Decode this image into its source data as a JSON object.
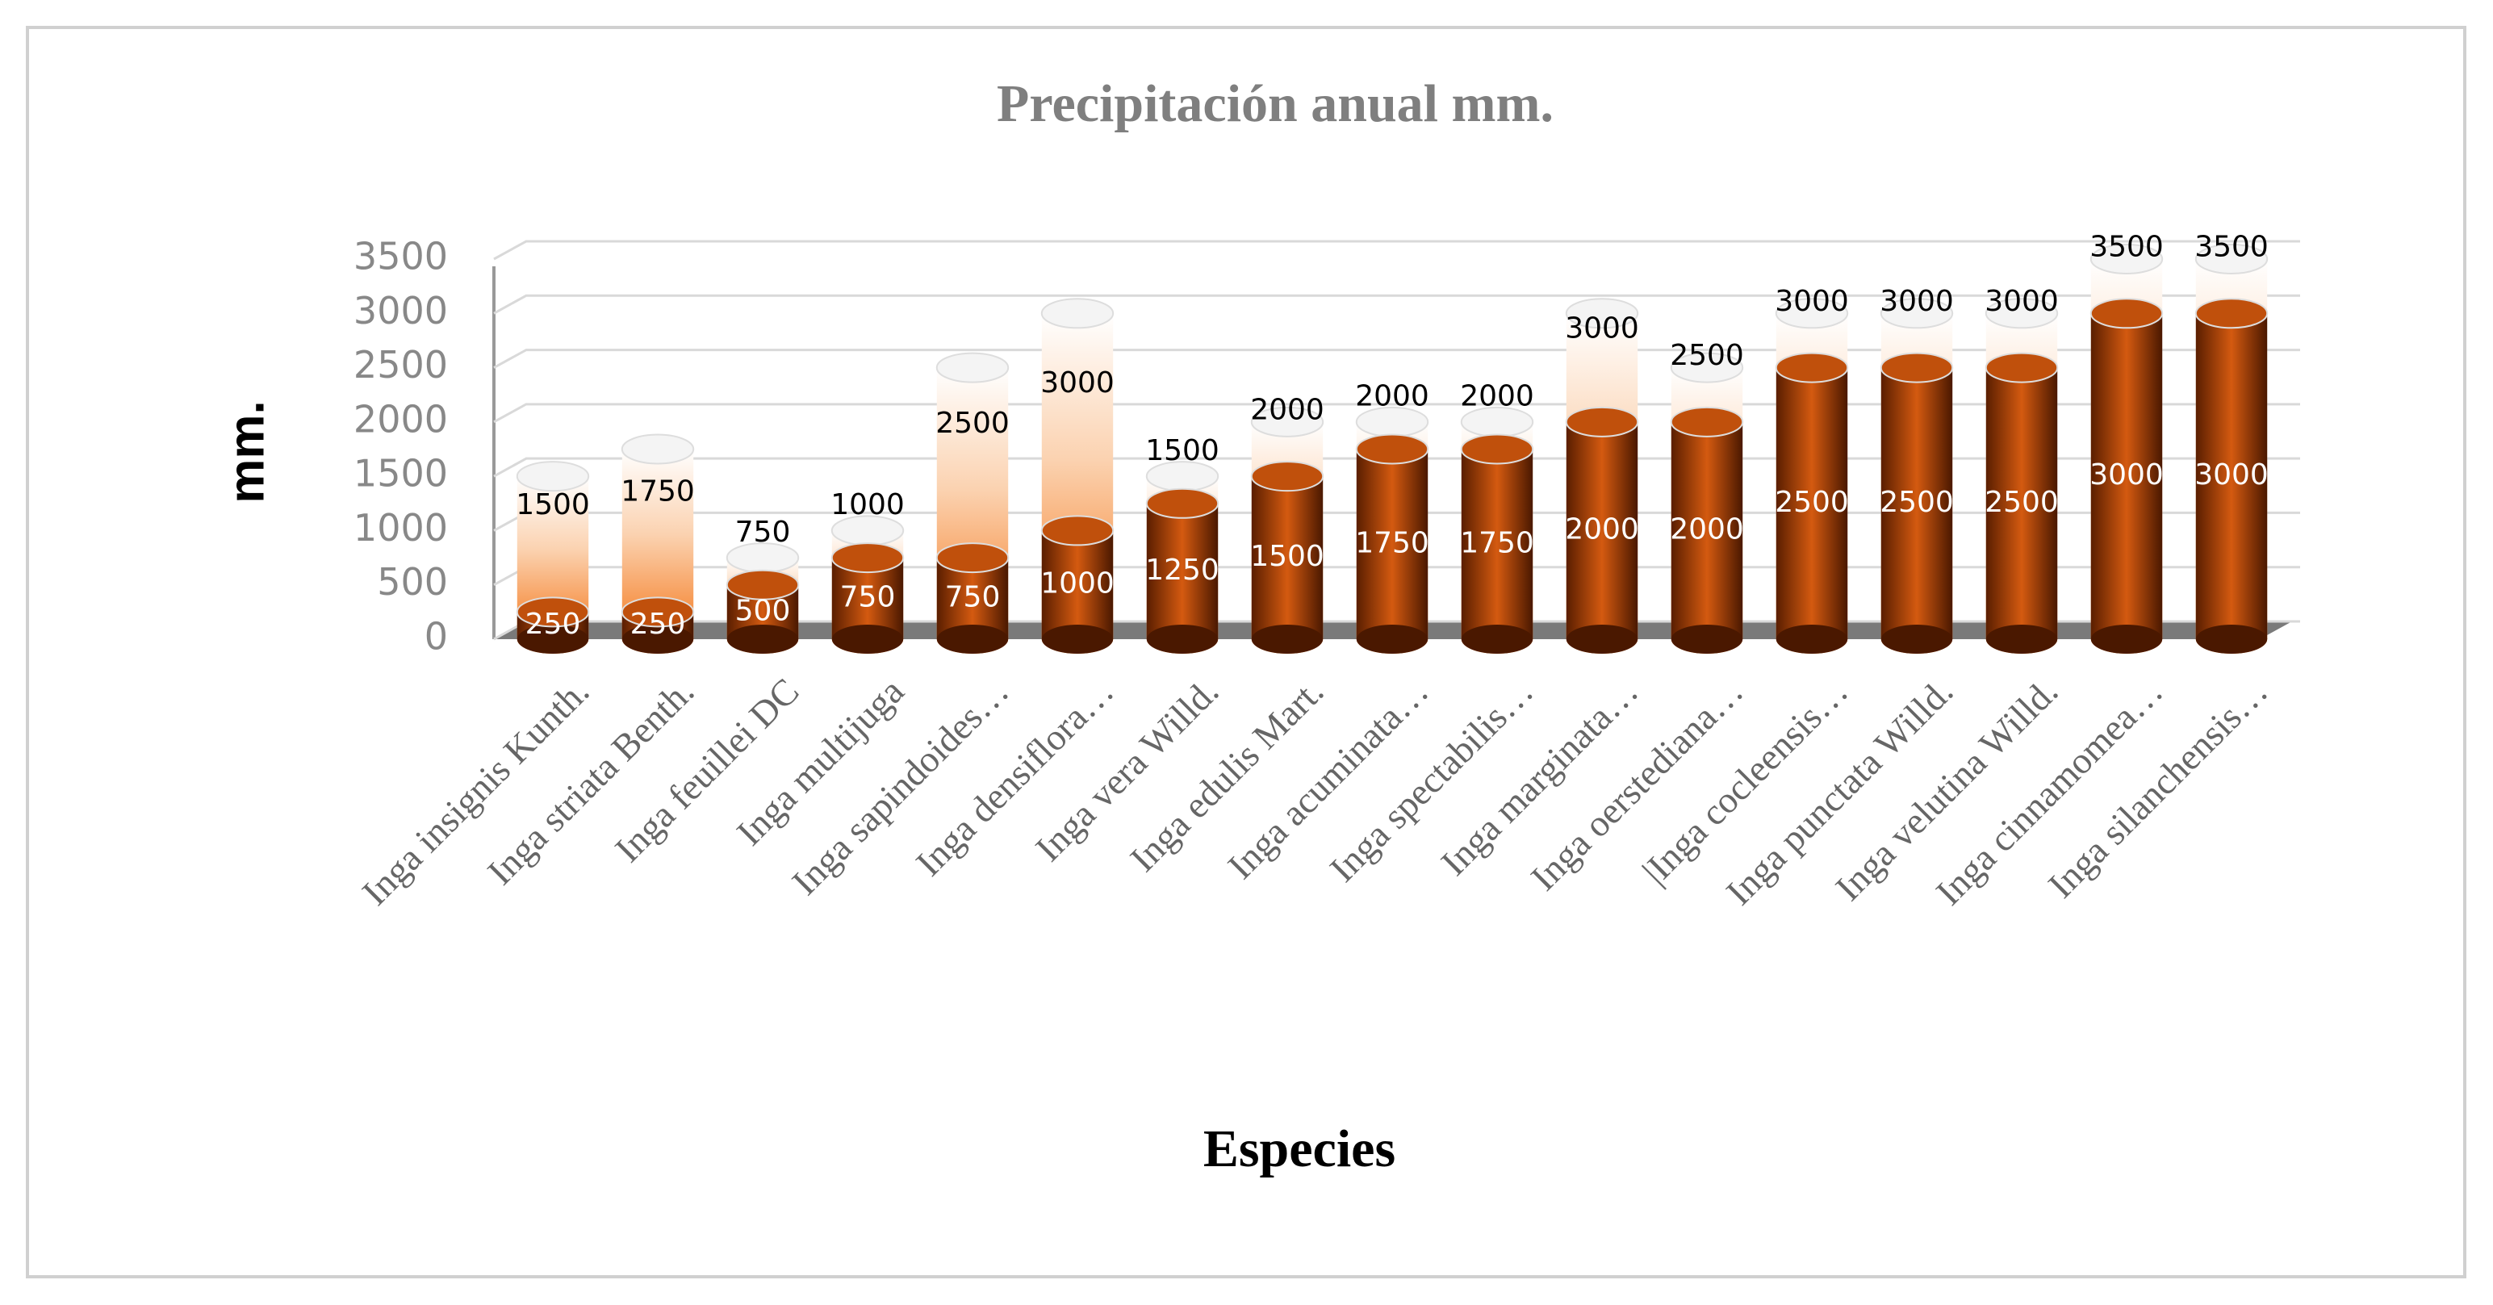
{
  "chart_data": {
    "type": "cylinder",
    "title": "Precipitación anual mm.",
    "x_label": "Especies",
    "y_label": "mm.",
    "categories": [
      "Inga insignis Kunth.",
      "Inga striata Benth.",
      "Inga feuillei DC",
      "Inga multijuga",
      "Inga sapindoides…",
      "Inga densiflora…",
      "Inga vera Willd.",
      "Inga edulis Mart.",
      "Inga acuminata…",
      "Inga spectabilis…",
      "Inga marginata…",
      "Inga oerstediana…",
      "|Inga cocleensis…",
      "Inga punctata Willd.",
      "Inga velutina Willd.",
      "Inga cinnamomea…",
      "Inga silanchensis…"
    ],
    "series": [
      {
        "color": "#f47a20",
        "values": [
          1500,
          1750,
          750,
          1000,
          2500,
          3000,
          1500,
          2000,
          2000,
          2000,
          3000,
          2500,
          3000,
          3000,
          3000,
          3500,
          3500
        ]
      },
      {
        "color": "#8a3300",
        "values": [
          250,
          250,
          500,
          750,
          750,
          1000,
          1250,
          1500,
          1750,
          1750,
          2000,
          2000,
          2500,
          2500,
          2500,
          3000,
          3000
        ]
      }
    ],
    "ylim": [
      0,
      3500
    ],
    "yticks": [
      0,
      500,
      1000,
      1500,
      2000,
      2500,
      3000,
      3500
    ],
    "grid": true
  }
}
